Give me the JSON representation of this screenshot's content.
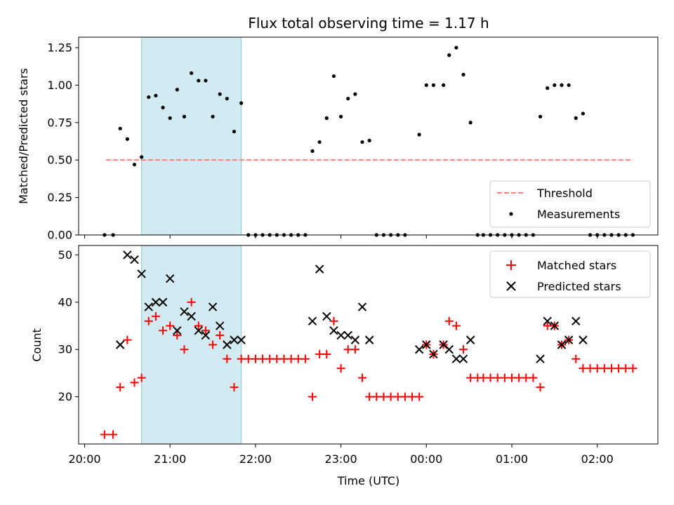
{
  "chart_data": [
    {
      "type": "scatter",
      "title": "Flux total observing time = 1.17 h",
      "ylabel": "Matched/Predicted stars",
      "ylim": [
        0,
        1.32
      ],
      "yticks": [
        0.0,
        0.25,
        0.5,
        0.75,
        1.0,
        1.25
      ],
      "shaded_interval": [
        "20:40",
        "21:50"
      ],
      "legend_position": "lower-right",
      "threshold": {
        "name": "Threshold",
        "value": 0.5,
        "x_range": [
          "20:15",
          "02:25"
        ],
        "color": "#ff7f7f"
      },
      "series": [
        {
          "name": "Measurements",
          "color": "#000000",
          "points": [
            [
              "20:14",
              0
            ],
            [
              "20:20",
              0
            ],
            [
              "20:25",
              0.71
            ],
            [
              "20:30",
              0.64
            ],
            [
              "20:35",
              0.47
            ],
            [
              "20:40",
              0.52
            ],
            [
              "20:45",
              0.92
            ],
            [
              "20:50",
              0.93
            ],
            [
              "20:55",
              0.85
            ],
            [
              "21:00",
              0.78
            ],
            [
              "21:05",
              0.97
            ],
            [
              "21:10",
              0.79
            ],
            [
              "21:15",
              1.08
            ],
            [
              "21:20",
              1.03
            ],
            [
              "21:25",
              1.03
            ],
            [
              "21:30",
              0.79
            ],
            [
              "21:35",
              0.94
            ],
            [
              "21:40",
              0.91
            ],
            [
              "21:45",
              0.69
            ],
            [
              "21:50",
              0.88
            ],
            [
              "21:55",
              0
            ],
            [
              "22:00",
              0
            ],
            [
              "22:05",
              0
            ],
            [
              "22:10",
              0
            ],
            [
              "22:15",
              0
            ],
            [
              "22:20",
              0
            ],
            [
              "22:25",
              0
            ],
            [
              "22:30",
              0
            ],
            [
              "22:35",
              0
            ],
            [
              "22:40",
              0.56
            ],
            [
              "22:45",
              0.62
            ],
            [
              "22:50",
              0.78
            ],
            [
              "22:55",
              1.06
            ],
            [
              "23:00",
              0.79
            ],
            [
              "23:05",
              0.91
            ],
            [
              "23:10",
              0.94
            ],
            [
              "23:15",
              0.62
            ],
            [
              "23:20",
              0.63
            ],
            [
              "23:25",
              0
            ],
            [
              "23:30",
              0
            ],
            [
              "23:35",
              0
            ],
            [
              "23:40",
              0
            ],
            [
              "23:45",
              0
            ],
            [
              "23:55",
              0.67
            ],
            [
              "00:00",
              1.0
            ],
            [
              "00:05",
              1.0
            ],
            [
              "00:12",
              1.0
            ],
            [
              "00:16",
              1.2
            ],
            [
              "00:21",
              1.25
            ],
            [
              "00:26",
              1.07
            ],
            [
              "00:31",
              0.75
            ],
            [
              "00:36",
              0
            ],
            [
              "00:40",
              0
            ],
            [
              "00:45",
              0
            ],
            [
              "00:50",
              0
            ],
            [
              "00:55",
              0
            ],
            [
              "01:00",
              0
            ],
            [
              "01:05",
              0
            ],
            [
              "01:10",
              0
            ],
            [
              "01:15",
              0
            ],
            [
              "01:20",
              0.79
            ],
            [
              "01:25",
              0.98
            ],
            [
              "01:30",
              1.0
            ],
            [
              "01:35",
              1.0
            ],
            [
              "01:40",
              1.0
            ],
            [
              "01:45",
              0.78
            ],
            [
              "01:50",
              0.81
            ],
            [
              "01:55",
              0
            ],
            [
              "02:00",
              0
            ],
            [
              "02:05",
              0
            ],
            [
              "02:10",
              0
            ],
            [
              "02:15",
              0
            ],
            [
              "02:20",
              0
            ],
            [
              "02:25",
              0
            ]
          ]
        }
      ]
    },
    {
      "type": "scatter",
      "xlabel": "Time (UTC)",
      "ylabel": "Count",
      "ylim": [
        10,
        52
      ],
      "yticks": [
        20,
        30,
        40,
        50
      ],
      "xticks": [
        "20:00",
        "21:00",
        "22:00",
        "23:00",
        "00:00",
        "01:00",
        "02:00"
      ],
      "shaded_interval": [
        "20:40",
        "21:50"
      ],
      "legend_position": "upper-right",
      "series": [
        {
          "name": "Matched stars",
          "color": "#ff0000",
          "marker": "plus",
          "points": [
            [
              "20:14",
              12
            ],
            [
              "20:20",
              12
            ],
            [
              "20:25",
              22
            ],
            [
              "20:30",
              32
            ],
            [
              "20:35",
              23
            ],
            [
              "20:40",
              24
            ],
            [
              "20:45",
              36
            ],
            [
              "20:50",
              37
            ],
            [
              "20:55",
              34
            ],
            [
              "21:00",
              35
            ],
            [
              "21:05",
              33
            ],
            [
              "21:10",
              30
            ],
            [
              "21:15",
              40
            ],
            [
              "21:20",
              35
            ],
            [
              "21:25",
              34
            ],
            [
              "21:30",
              31
            ],
            [
              "21:35",
              33
            ],
            [
              "21:40",
              28
            ],
            [
              "21:45",
              22
            ],
            [
              "21:50",
              28
            ],
            [
              "21:55",
              28
            ],
            [
              "22:00",
              28
            ],
            [
              "22:05",
              28
            ],
            [
              "22:10",
              28
            ],
            [
              "22:15",
              28
            ],
            [
              "22:20",
              28
            ],
            [
              "22:25",
              28
            ],
            [
              "22:30",
              28
            ],
            [
              "22:35",
              28
            ],
            [
              "22:40",
              20
            ],
            [
              "22:45",
              29
            ],
            [
              "22:50",
              29
            ],
            [
              "22:55",
              36
            ],
            [
              "23:00",
              26
            ],
            [
              "23:05",
              30
            ],
            [
              "23:10",
              30
            ],
            [
              "23:15",
              24
            ],
            [
              "23:20",
              20
            ],
            [
              "23:25",
              20
            ],
            [
              "23:30",
              20
            ],
            [
              "23:35",
              20
            ],
            [
              "23:40",
              20
            ],
            [
              "23:45",
              20
            ],
            [
              "23:50",
              20
            ],
            [
              "23:55",
              20
            ],
            [
              "00:00",
              31
            ],
            [
              "00:05",
              29
            ],
            [
              "00:12",
              31
            ],
            [
              "00:16",
              36
            ],
            [
              "00:21",
              35
            ],
            [
              "00:26",
              30
            ],
            [
              "00:31",
              24
            ],
            [
              "00:36",
              24
            ],
            [
              "00:40",
              24
            ],
            [
              "00:45",
              24
            ],
            [
              "00:50",
              24
            ],
            [
              "00:55",
              24
            ],
            [
              "01:00",
              24
            ],
            [
              "01:05",
              24
            ],
            [
              "01:10",
              24
            ],
            [
              "01:15",
              24
            ],
            [
              "01:20",
              22
            ],
            [
              "01:25",
              35
            ],
            [
              "01:30",
              35
            ],
            [
              "01:35",
              31
            ],
            [
              "01:40",
              32
            ],
            [
              "01:45",
              28
            ],
            [
              "01:50",
              26
            ],
            [
              "01:55",
              26
            ],
            [
              "02:00",
              26
            ],
            [
              "02:05",
              26
            ],
            [
              "02:10",
              26
            ],
            [
              "02:15",
              26
            ],
            [
              "02:20",
              26
            ],
            [
              "02:25",
              26
            ]
          ]
        },
        {
          "name": "Predicted stars",
          "color": "#000000",
          "marker": "x",
          "points": [
            [
              "20:25",
              31
            ],
            [
              "20:30",
              50
            ],
            [
              "20:35",
              49
            ],
            [
              "20:40",
              46
            ],
            [
              "20:45",
              39
            ],
            [
              "20:50",
              40
            ],
            [
              "20:55",
              40
            ],
            [
              "21:00",
              45
            ],
            [
              "21:05",
              34
            ],
            [
              "21:10",
              38
            ],
            [
              "21:15",
              37
            ],
            [
              "21:20",
              34
            ],
            [
              "21:25",
              33
            ],
            [
              "21:30",
              39
            ],
            [
              "21:35",
              35
            ],
            [
              "21:40",
              31
            ],
            [
              "21:45",
              32
            ],
            [
              "21:50",
              32
            ],
            [
              "22:40",
              36
            ],
            [
              "22:45",
              47
            ],
            [
              "22:50",
              37
            ],
            [
              "22:55",
              34
            ],
            [
              "23:00",
              33
            ],
            [
              "23:05",
              33
            ],
            [
              "23:10",
              32
            ],
            [
              "23:15",
              39
            ],
            [
              "23:20",
              32
            ],
            [
              "23:55",
              30
            ],
            [
              "00:00",
              31
            ],
            [
              "00:05",
              29
            ],
            [
              "00:12",
              31
            ],
            [
              "00:16",
              30
            ],
            [
              "00:21",
              28
            ],
            [
              "00:26",
              28
            ],
            [
              "00:31",
              32
            ],
            [
              "01:20",
              28
            ],
            [
              "01:25",
              36
            ],
            [
              "01:30",
              35
            ],
            [
              "01:35",
              31
            ],
            [
              "01:40",
              32
            ],
            [
              "01:45",
              36
            ],
            [
              "01:50",
              32
            ]
          ]
        }
      ]
    }
  ],
  "colors": {
    "shade": "#add8e6",
    "threshold": "#ff7f7f",
    "matched": "#ff0000",
    "predicted": "#000000"
  }
}
